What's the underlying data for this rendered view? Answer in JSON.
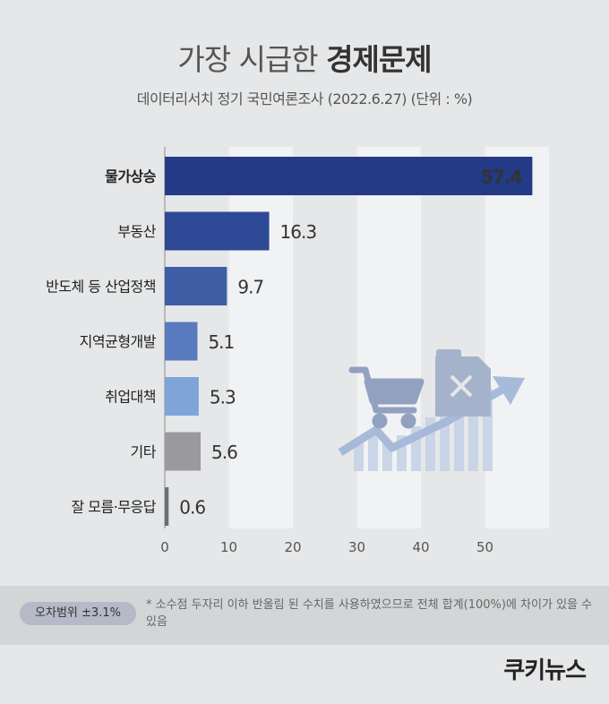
{
  "header": {
    "title_light": "가장 시급한 ",
    "title_bold": "경제문제",
    "subtitle": "데이터리서치 정기 국민여론조사 (2022.6.27)  (단위 : %)"
  },
  "chart_data": {
    "type": "bar",
    "orientation": "horizontal",
    "categories": [
      "물가상승",
      "부동산",
      "반도체 등 산업정책",
      "지역균형개발",
      "취업대책",
      "기타",
      "잘 모름·무응답"
    ],
    "values": [
      57.4,
      16.3,
      9.7,
      5.1,
      5.3,
      5.6,
      0.6
    ],
    "value_labels": [
      "57.4",
      "16.3",
      "9.7",
      "5.1",
      "5.3",
      "5.6",
      "0.6"
    ],
    "bar_colors": [
      "#233a86",
      "#2e4a96",
      "#3f5ea6",
      "#5a7ac0",
      "#7ea4d8",
      "#9a9a9c",
      "#6d6e70"
    ],
    "xlim": [
      0,
      60
    ],
    "xticks": [
      0,
      10,
      20,
      30,
      40,
      50
    ],
    "grid": "vertical bands",
    "title": "가장 시급한 경제문제",
    "xlabel": "",
    "ylabel": ""
  },
  "footer": {
    "margin_of_error": "오차범위 ±3.1%",
    "note": "* 소수점 두자리 이하 반올림 된 수치를 사용하였으므로 전체 합계(100%)에 차이가 있을 수 있음",
    "brand": "쿠키뉴스"
  },
  "illustration": {
    "icons": [
      "shopping-cart-icon",
      "fuel-canister-icon",
      "rising-arrow-icon"
    ]
  }
}
